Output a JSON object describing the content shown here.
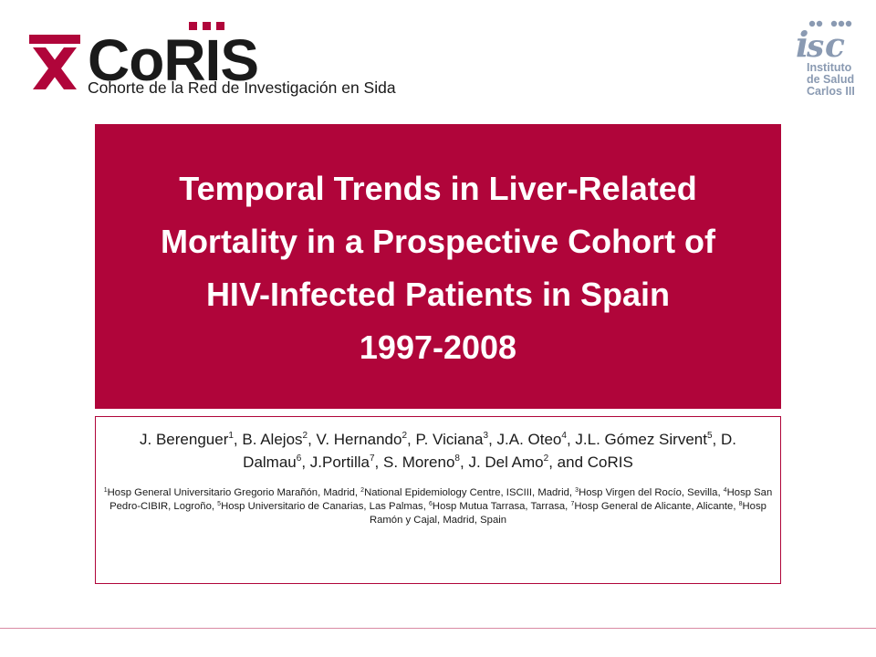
{
  "logos": {
    "coris": {
      "wordmark": "CoRIS",
      "subtitle": "Cohorte de la Red de Investigación en Sida",
      "mark_color": "#b0053a"
    },
    "isc": {
      "lines": [
        "Instituto",
        "de Salud",
        "Carlos III"
      ],
      "color": "#8a9ab2"
    }
  },
  "title": {
    "lines": [
      "Temporal Trends in Liver-Related",
      "Mortality in a Prospective Cohort of",
      "HIV-Infected Patients in Spain",
      "1997-2008"
    ],
    "background": "#b0053a"
  },
  "authors": [
    {
      "name": "J. Berenguer",
      "sup": "1"
    },
    {
      "name": "B. Alejos",
      "sup": "2"
    },
    {
      "name": "V. Hernando",
      "sup": "2"
    },
    {
      "name": "P. Viciana",
      "sup": "3"
    },
    {
      "name": "J.A. Oteo",
      "sup": "4"
    },
    {
      "name": "J.L. Gómez Sirvent",
      "sup": "5"
    },
    {
      "name": "D. Dalmau",
      "sup": "6"
    },
    {
      "name": "J.Portilla",
      "sup": "7"
    },
    {
      "name": "S. Moreno",
      "sup": "8"
    },
    {
      "name": "J. Del Amo",
      "sup": "2"
    }
  ],
  "authors_tail": "and CoRIS",
  "affiliations": [
    {
      "sup": "1",
      "text": "Hosp General Universitario Gregorio Marañón, Madrid"
    },
    {
      "sup": "2",
      "text": "National Epidemiology Centre, ISCIII, Madrid"
    },
    {
      "sup": "3",
      "text": "Hosp Virgen del Rocío, Sevilla"
    },
    {
      "sup": "4",
      "text": "Hosp San Pedro-CIBIR, Logroño"
    },
    {
      "sup": "5",
      "text": "Hosp Universitario de Canarias, Las Palmas"
    },
    {
      "sup": "6",
      "text": "Hosp Mutua Tarrasa, Tarrasa"
    },
    {
      "sup": "7",
      "text": "Hosp General de Alicante, Alicante"
    },
    {
      "sup": "8",
      "text": "Hosp Ramón y Cajal, Madrid, Spain"
    }
  ]
}
